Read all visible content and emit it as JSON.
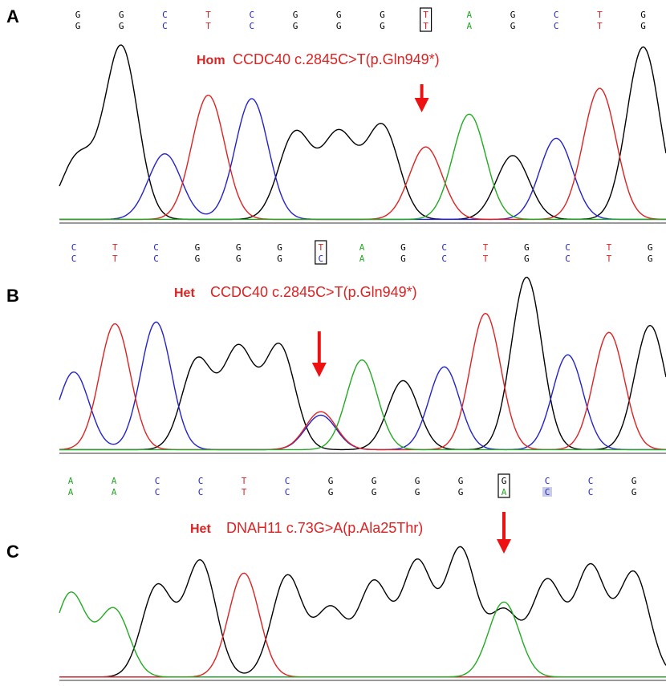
{
  "figure": {
    "panels": [
      {
        "letter": "A",
        "status": "Hom",
        "mutation": "CCDC40 c.2845C>T(p.Gln949*)",
        "bases_top": [
          "G",
          "G",
          "C",
          "T",
          "C",
          "G",
          "G",
          "G",
          "T",
          "A",
          "G",
          "C",
          "T",
          "G"
        ],
        "bases_bottom": [
          "G",
          "G",
          "C",
          "T",
          "C",
          "G",
          "G",
          "G",
          "T",
          "A",
          "G",
          "C",
          "T",
          "G"
        ],
        "boxed_index": 8,
        "arrow_index": 8
      },
      {
        "letter": "B",
        "status": "Het",
        "mutation": "CCDC40 c.2845C>T(p.Gln949*)",
        "bases_top": [
          "C",
          "T",
          "C",
          "G",
          "G",
          "G",
          "T",
          "A",
          "G",
          "C",
          "T",
          "G",
          "C",
          "T",
          "G"
        ],
        "bases_bottom": [
          "C",
          "T",
          "C",
          "G",
          "G",
          "G",
          "C",
          "A",
          "G",
          "C",
          "T",
          "G",
          "C",
          "T",
          "G"
        ],
        "boxed_index": 6,
        "arrow_index": 6
      },
      {
        "letter": "C",
        "status": "Het",
        "mutation": "DNAH11 c.73G>A(p.Ala25Thr)",
        "bases_top": [
          "A",
          "A",
          "C",
          "C",
          "T",
          "C",
          "G",
          "G",
          "G",
          "G",
          "G",
          "C",
          "C",
          "G"
        ],
        "bases_bottom": [
          "A",
          "A",
          "C",
          "C",
          "T",
          "C",
          "G",
          "G",
          "G",
          "G",
          "A",
          "C",
          "C",
          "G"
        ],
        "boxed_index": 10,
        "arrow_index": 10
      }
    ]
  },
  "chart_data": [
    {
      "type": "line",
      "panel": "A",
      "series": [
        {
          "color": "#000000",
          "peaks": [
            [
              0,
              0.36
            ],
            [
              1,
              1.0
            ],
            [
              5,
              0.5
            ],
            [
              6,
              0.49
            ],
            [
              7,
              0.54
            ],
            [
              10,
              0.37
            ],
            [
              13,
              1.0
            ]
          ]
        },
        {
          "color": "#2222cc",
          "peaks": [
            [
              2,
              0.38
            ],
            [
              4,
              0.7
            ],
            [
              11,
              0.47
            ]
          ]
        },
        {
          "color": "#dd2222",
          "peaks": [
            [
              3,
              0.72
            ],
            [
              8,
              0.42
            ],
            [
              12,
              0.76
            ]
          ]
        },
        {
          "color": "#22aa22",
          "peaks": [
            [
              9,
              0.61
            ]
          ]
        }
      ]
    },
    {
      "type": "line",
      "panel": "B",
      "series": [
        {
          "color": "#000000",
          "peaks": [
            [
              3,
              0.52
            ],
            [
              4,
              0.58
            ],
            [
              5,
              0.6
            ],
            [
              8,
              0.4
            ],
            [
              11,
              1.0
            ],
            [
              14,
              0.72
            ]
          ]
        },
        {
          "color": "#2222cc",
          "peaks": [
            [
              0,
              0.45
            ],
            [
              2,
              0.74
            ],
            [
              6,
              0.2
            ],
            [
              9,
              0.48
            ],
            [
              12,
              0.55
            ]
          ]
        },
        {
          "color": "#dd2222",
          "peaks": [
            [
              1,
              0.73
            ],
            [
              6,
              0.22
            ],
            [
              10,
              0.79
            ],
            [
              13,
              0.68
            ]
          ]
        },
        {
          "color": "#22aa22",
          "peaks": [
            [
              7,
              0.52
            ]
          ]
        }
      ]
    },
    {
      "type": "line",
      "panel": "C",
      "series": [
        {
          "color": "#000000",
          "peaks": [
            [
              2,
              0.63
            ],
            [
              3,
              0.8
            ],
            [
              5,
              0.7
            ],
            [
              6,
              0.47
            ],
            [
              7,
              0.65
            ],
            [
              8,
              0.79
            ],
            [
              9,
              0.88
            ],
            [
              10,
              0.45
            ],
            [
              11,
              0.66
            ],
            [
              12,
              0.76
            ],
            [
              13,
              0.72
            ]
          ]
        },
        {
          "color": "#2222cc",
          "peaks": []
        },
        {
          "color": "#dd2222",
          "peaks": [
            [
              4,
              0.72
            ]
          ]
        },
        {
          "color": "#22aa22",
          "peaks": [
            [
              0,
              0.58
            ],
            [
              1,
              0.47
            ],
            [
              10,
              0.52
            ]
          ]
        }
      ]
    }
  ],
  "colors": {
    "A": "#22aa22",
    "C": "#2222cc",
    "G": "#000000",
    "T": "#dd2222",
    "label": "#dd2222",
    "arrow": "#ee1111"
  }
}
